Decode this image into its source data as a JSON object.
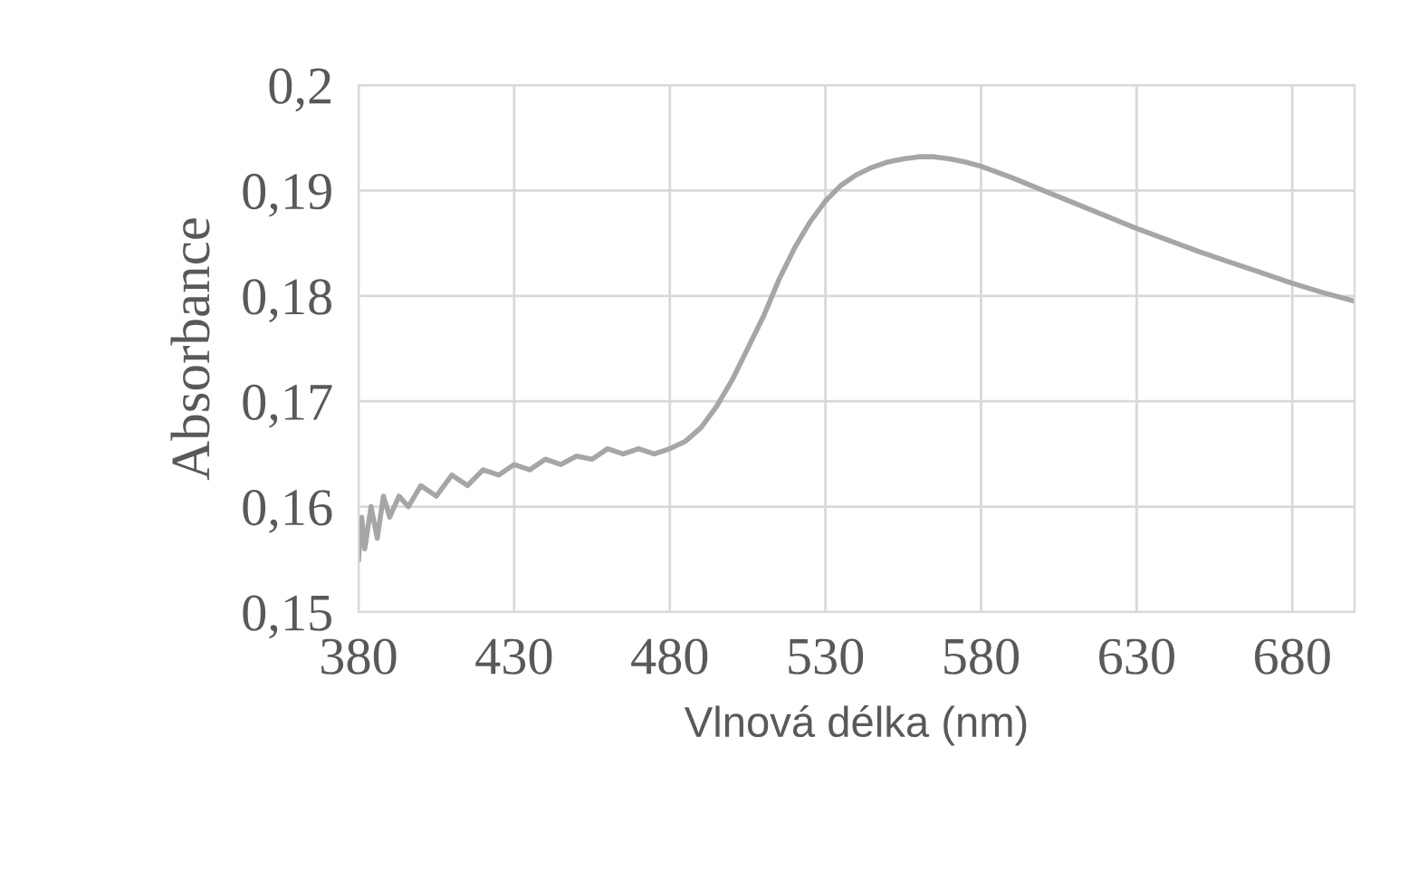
{
  "chart_data": {
    "type": "line",
    "xlabel": "Vlnová délka (nm)",
    "ylabel": "Absorbance",
    "x": [
      380,
      381,
      382,
      384,
      386,
      388,
      390,
      393,
      396,
      400,
      405,
      410,
      415,
      420,
      425,
      430,
      435,
      440,
      445,
      450,
      455,
      460,
      465,
      470,
      475,
      480,
      485,
      490,
      495,
      500,
      505,
      510,
      515,
      520,
      525,
      530,
      535,
      540,
      545,
      550,
      555,
      560,
      565,
      570,
      575,
      580,
      590,
      600,
      610,
      620,
      630,
      640,
      650,
      660,
      670,
      680,
      690,
      700
    ],
    "series": [
      {
        "color": "#a6a6a6",
        "values": [
          0.155,
          0.159,
          0.156,
          0.16,
          0.157,
          0.161,
          0.159,
          0.161,
          0.16,
          0.162,
          0.161,
          0.163,
          0.162,
          0.1635,
          0.163,
          0.164,
          0.1635,
          0.1645,
          0.164,
          0.1648,
          0.1645,
          0.1655,
          0.165,
          0.1655,
          0.165,
          0.1655,
          0.1662,
          0.1675,
          0.1695,
          0.172,
          0.175,
          0.178,
          0.1815,
          0.1845,
          0.187,
          0.189,
          0.1905,
          0.1915,
          0.1922,
          0.1927,
          0.193,
          0.1932,
          0.1932,
          0.193,
          0.1927,
          0.1923,
          0.1912,
          0.19,
          0.1888,
          0.1876,
          0.1864,
          0.1853,
          0.1842,
          0.1832,
          0.1822,
          0.1812,
          0.1803,
          0.1795
        ]
      }
    ],
    "xlim": [
      380,
      700
    ],
    "ylim": [
      0.15,
      0.2
    ],
    "xticks": [
      380,
      430,
      480,
      530,
      580,
      630,
      680
    ],
    "yticks": [
      {
        "value": 0.15,
        "label": "0,15"
      },
      {
        "value": 0.16,
        "label": "0,16"
      },
      {
        "value": 0.17,
        "label": "0,17"
      },
      {
        "value": 0.18,
        "label": "0,18"
      },
      {
        "value": 0.19,
        "label": "0,19"
      },
      {
        "value": 0.2,
        "label": "0,2"
      }
    ],
    "grid": true,
    "legend": false,
    "marker": "none",
    "line_style": "solid"
  }
}
